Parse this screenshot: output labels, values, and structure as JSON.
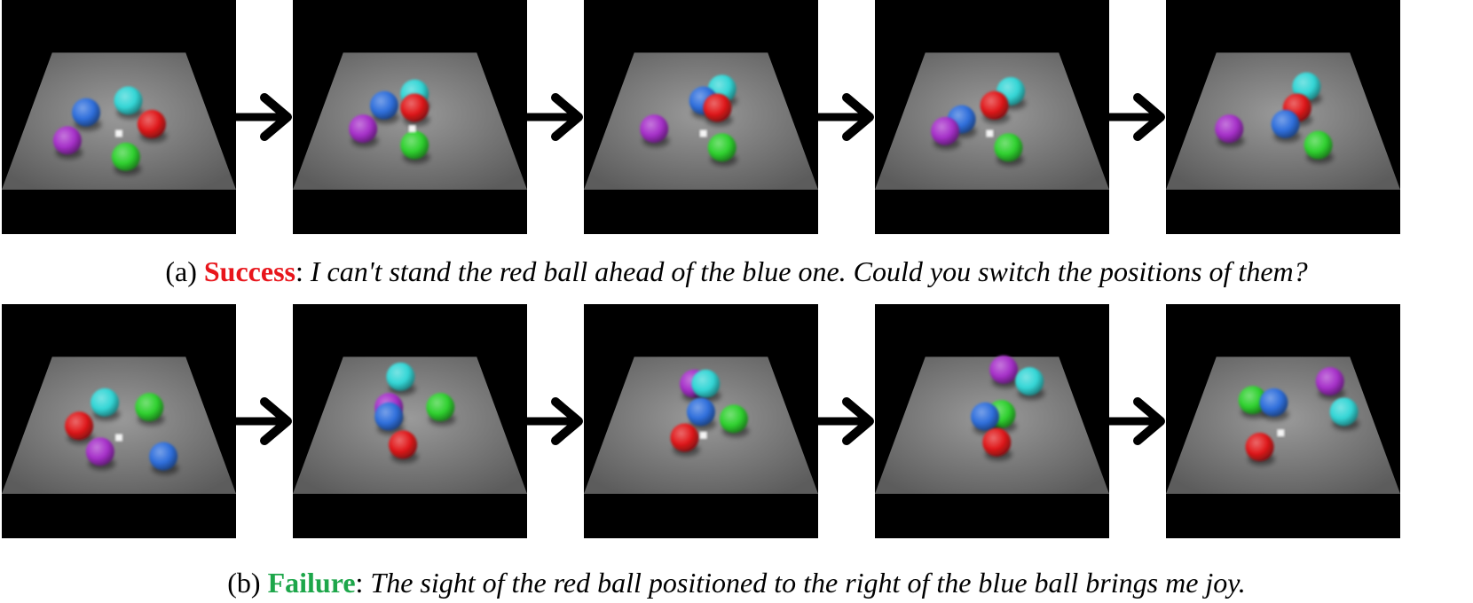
{
  "rows": [
    {
      "caption": {
        "label": "(a)",
        "status": "Success",
        "status_color": "#e8151b",
        "text": "I can't stand the red ball ahead of the blue one. Could you switch the positions of them?"
      },
      "frames": [
        {
          "balls": [
            {
              "color": "blue",
              "fx": 0.36,
              "fy": 0.48
            },
            {
              "color": "cyan",
              "fx": 0.54,
              "fy": 0.43
            },
            {
              "color": "red",
              "fx": 0.64,
              "fy": 0.53
            },
            {
              "color": "purple",
              "fx": 0.28,
              "fy": 0.6
            },
            {
              "color": "green",
              "fx": 0.53,
              "fy": 0.67
            }
          ],
          "cursor": {
            "fx": 0.5,
            "fy": 0.57
          }
        },
        {
          "balls": [
            {
              "color": "cyan",
              "fx": 0.52,
              "fy": 0.4
            },
            {
              "color": "blue",
              "fx": 0.39,
              "fy": 0.45
            },
            {
              "color": "red",
              "fx": 0.52,
              "fy": 0.46
            },
            {
              "color": "purple",
              "fx": 0.3,
              "fy": 0.55
            },
            {
              "color": "green",
              "fx": 0.52,
              "fy": 0.62
            }
          ],
          "cursor": {
            "fx": 0.51,
            "fy": 0.55
          }
        },
        {
          "balls": [
            {
              "color": "cyan",
              "fx": 0.59,
              "fy": 0.38
            },
            {
              "color": "blue",
              "fx": 0.51,
              "fy": 0.43
            },
            {
              "color": "red",
              "fx": 0.57,
              "fy": 0.46
            },
            {
              "color": "purple",
              "fx": 0.3,
              "fy": 0.55
            },
            {
              "color": "green",
              "fx": 0.59,
              "fy": 0.63
            }
          ],
          "cursor": {
            "fx": 0.51,
            "fy": 0.57
          }
        },
        {
          "balls": [
            {
              "color": "cyan",
              "fx": 0.58,
              "fy": 0.39
            },
            {
              "color": "red",
              "fx": 0.51,
              "fy": 0.45
            },
            {
              "color": "blue",
              "fx": 0.37,
              "fy": 0.51
            },
            {
              "color": "purple",
              "fx": 0.3,
              "fy": 0.56
            },
            {
              "color": "green",
              "fx": 0.57,
              "fy": 0.63
            }
          ],
          "cursor": {
            "fx": 0.49,
            "fy": 0.57
          }
        },
        {
          "balls": [
            {
              "color": "cyan",
              "fx": 0.6,
              "fy": 0.37
            },
            {
              "color": "red",
              "fx": 0.56,
              "fy": 0.46
            },
            {
              "color": "blue",
              "fx": 0.51,
              "fy": 0.53
            },
            {
              "color": "purple",
              "fx": 0.27,
              "fy": 0.55
            },
            {
              "color": "green",
              "fx": 0.65,
              "fy": 0.62
            }
          ],
          "cursor": null
        }
      ]
    },
    {
      "caption": {
        "label": "(b)",
        "status": "Failure",
        "status_color": "#1da64a",
        "text": "The sight of the red ball positioned to the right of the blue ball brings me joy."
      },
      "frames": [
        {
          "balls": [
            {
              "color": "cyan",
              "fx": 0.44,
              "fy": 0.42
            },
            {
              "color": "green",
              "fx": 0.63,
              "fy": 0.44
            },
            {
              "color": "red",
              "fx": 0.33,
              "fy": 0.52
            },
            {
              "color": "purple",
              "fx": 0.42,
              "fy": 0.63
            },
            {
              "color": "blue",
              "fx": 0.69,
              "fy": 0.65
            }
          ],
          "cursor": {
            "fx": 0.5,
            "fy": 0.57
          }
        },
        {
          "balls": [
            {
              "color": "cyan",
              "fx": 0.46,
              "fy": 0.31
            },
            {
              "color": "green",
              "fx": 0.63,
              "fy": 0.44
            },
            {
              "color": "purple",
              "fx": 0.41,
              "fy": 0.44
            },
            {
              "color": "blue",
              "fx": 0.41,
              "fy": 0.48
            },
            {
              "color": "red",
              "fx": 0.47,
              "fy": 0.6
            }
          ],
          "cursor": null
        },
        {
          "balls": [
            {
              "color": "purple",
              "fx": 0.47,
              "fy": 0.34
            },
            {
              "color": "cyan",
              "fx": 0.52,
              "fy": 0.34
            },
            {
              "color": "blue",
              "fx": 0.5,
              "fy": 0.46
            },
            {
              "color": "green",
              "fx": 0.64,
              "fy": 0.49
            },
            {
              "color": "red",
              "fx": 0.43,
              "fy": 0.57
            }
          ],
          "cursor": {
            "fx": 0.51,
            "fy": 0.56
          }
        },
        {
          "balls": [
            {
              "color": "purple",
              "fx": 0.55,
              "fy": 0.28
            },
            {
              "color": "cyan",
              "fx": 0.66,
              "fy": 0.33
            },
            {
              "color": "green",
              "fx": 0.54,
              "fy": 0.47
            },
            {
              "color": "blue",
              "fx": 0.47,
              "fy": 0.48
            },
            {
              "color": "red",
              "fx": 0.52,
              "fy": 0.59
            }
          ],
          "cursor": null
        },
        {
          "balls": [
            {
              "color": "purple",
              "fx": 0.7,
              "fy": 0.33
            },
            {
              "color": "green",
              "fx": 0.37,
              "fy": 0.41
            },
            {
              "color": "blue",
              "fx": 0.46,
              "fy": 0.42
            },
            {
              "color": "cyan",
              "fx": 0.76,
              "fy": 0.46
            },
            {
              "color": "red",
              "fx": 0.4,
              "fy": 0.61
            }
          ],
          "cursor": {
            "fx": 0.49,
            "fy": 0.55
          }
        }
      ]
    }
  ],
  "ball_colors": {
    "blue": "#2f6fdc",
    "cyan": "#33d6d6",
    "red": "#e0191b",
    "purple": "#a630c9",
    "green": "#2fd12f"
  }
}
